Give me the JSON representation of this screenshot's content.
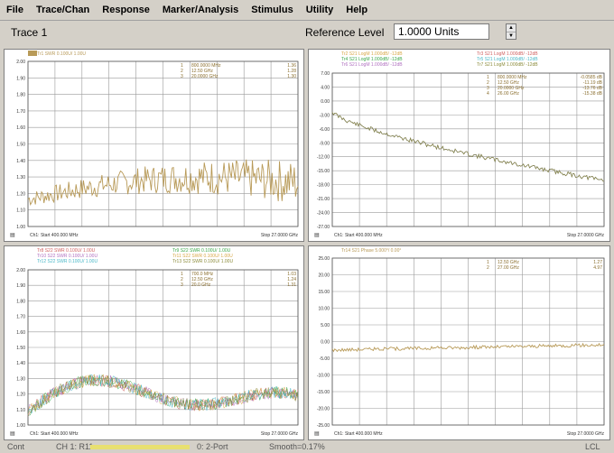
{
  "menu": [
    "File",
    "Trace/Chan",
    "Response",
    "Marker/Analysis",
    "Stimulus",
    "Utility",
    "Help"
  ],
  "toolbar": {
    "trace_label": "Trace 1",
    "ref_label": "Reference Level",
    "ref_value": "1.0000 Units"
  },
  "status": {
    "left": "Cont",
    "channel": "CH 1: R11",
    "port": "0: 2-Port",
    "smoothing": "Smooth=0.17%",
    "right": "LCL"
  },
  "colors": {
    "tan": "#b89a58",
    "olive": "#8b8b3a",
    "gray": "#6e6e6e",
    "red": "#d06060",
    "green": "#3aa84a",
    "cyan": "#4ab8c8",
    "orange": "#d8a848",
    "violet": "#b070c0"
  },
  "charts": [
    {
      "id": "tl",
      "ylabels": [
        "2.00",
        "1.90",
        "1.80",
        "1.70",
        "1.60",
        "1.50",
        "1.40",
        "1.30",
        "1.20",
        "1.10",
        "1.00"
      ],
      "footer_left": "Ch1: Start 400.000 MHz",
      "footer_right": "Stop 27.0000 GHz",
      "legend": [
        {
          "text": "Tr1 SWR 0.100U/ 1.00U",
          "color": "tan"
        }
      ],
      "markers": [
        {
          "label": "1",
          "freq": "800.0000 MHz",
          "val": "1.36"
        },
        {
          "label": "2",
          "freq": "12.50 GHz",
          "val": "1.28"
        },
        {
          "label": "3",
          "freq": "20.0000 GHz",
          "val": "1.30"
        }
      ]
    },
    {
      "id": "tr",
      "ylabels": [
        "7.00",
        "4.00",
        "0.00",
        "-3.00",
        "-6.00",
        "-9.00",
        "-12.00",
        "-15.00",
        "-18.00",
        "-21.00",
        "-24.00",
        "-27.00"
      ],
      "footer_left": "Ch1: Start 400.000 MHz",
      "footer_right": "Stop 27.0000 GHz",
      "legend": [
        {
          "text": "Tr2 S21 LogM 1.000dB/ -12dB",
          "color": "orange"
        },
        {
          "text": "Tr3 S21 LogM 1.000dB/ -12dB",
          "color": "red"
        },
        {
          "text": "Tr4 S21 LogM 1.000dB/ -12dB",
          "color": "green"
        },
        {
          "text": "Tr5 S21 LogM 1.000dB/ -12dB",
          "color": "cyan"
        },
        {
          "text": "Tr6 S21 LogM 1.000dB/ -12dB",
          "color": "violet"
        },
        {
          "text": "Tr7 S21 LogM 1.000dB/ -12dB",
          "color": "olive"
        }
      ],
      "markers": [
        {
          "label": "1",
          "freq": "800.0000 MHz",
          "val": "-0.0585 dB"
        },
        {
          "label": "2",
          "freq": "12.50 GHz",
          "val": "-11.19 dB"
        },
        {
          "label": "3",
          "freq": "20.0000 GHz",
          "val": "-13.76 dB"
        },
        {
          "label": "4",
          "freq": "26.00 GHz",
          "val": "-15.38 dB"
        }
      ]
    },
    {
      "id": "bl",
      "ylabels": [
        "2.00",
        "1.90",
        "1.80",
        "1.70",
        "1.60",
        "1.50",
        "1.40",
        "1.30",
        "1.20",
        "1.10",
        "1.00"
      ],
      "footer_left": "Ch1: Start 400.000 MHz",
      "footer_right": "Stop 27.0000 GHz",
      "legend": [
        {
          "text": "Tr8 S22 SWR 0.100U/ 1.00U",
          "color": "red"
        },
        {
          "text": "Tr9 S22 SWR 0.100U/ 1.00U",
          "color": "green"
        },
        {
          "text": "Tr10 S22 SWR 0.100U/ 1.00U",
          "color": "violet"
        },
        {
          "text": "Tr11 S22 SWR 0.100U/ 1.00U",
          "color": "orange"
        },
        {
          "text": "Tr12 S22 SWR 0.100U/ 1.00U",
          "color": "cyan"
        },
        {
          "text": "Tr13 S22 SWR 0.100U/ 1.00U",
          "color": "olive"
        }
      ],
      "markers": [
        {
          "label": "1",
          "freq": "700.0 MHz",
          "val": "1.03"
        },
        {
          "label": "2",
          "freq": "12.50 GHz",
          "val": "1.24"
        },
        {
          "label": "3",
          "freq": "20.0 GHz",
          "val": "1.31"
        }
      ]
    },
    {
      "id": "br",
      "ylabels": [
        "25.00",
        "20.00",
        "15.00",
        "10.00",
        "5.00",
        "0.00",
        "-5.00",
        "-10.00",
        "-15.00",
        "-20.00",
        "-25.00"
      ],
      "footer_left": "Ch1: Start 400.000 MHz",
      "footer_right": "Stop 27.0000 GHz",
      "legend": [
        {
          "text": "Tr14 S21 Phase 5.000°/ 0.00°",
          "color": "tan"
        }
      ],
      "markers": [
        {
          "label": "1",
          "freq": "12.50 GHz",
          "val": "1.27"
        },
        {
          "label": "2",
          "freq": "27.00 GHz",
          "val": "4.97"
        }
      ]
    }
  ]
}
